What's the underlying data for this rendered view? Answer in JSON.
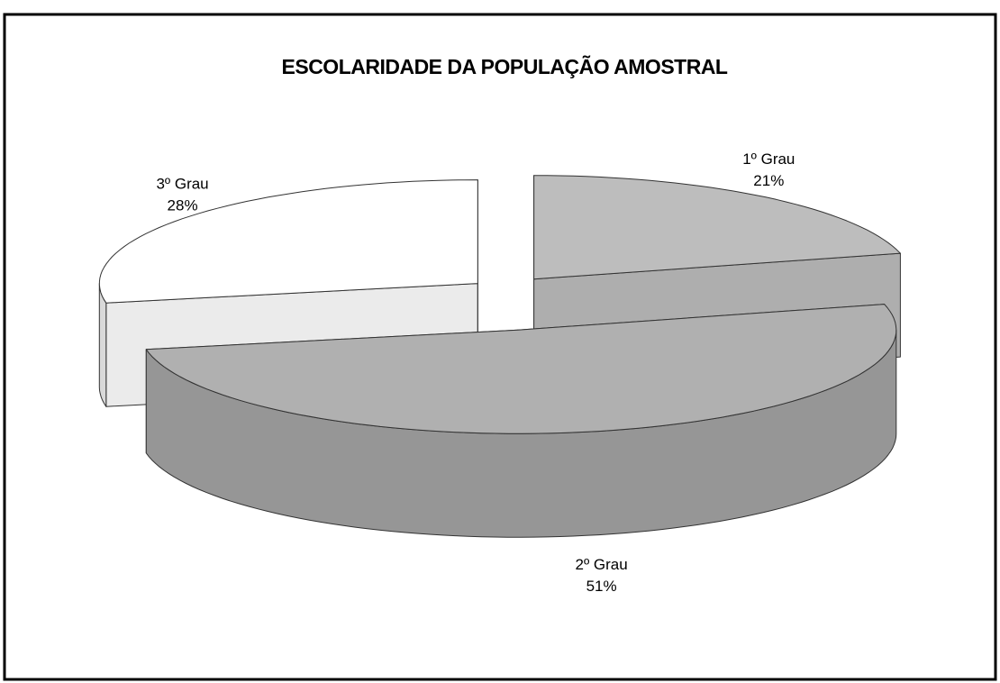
{
  "chart_data": {
    "type": "pie",
    "title": "ESCOLARIDADE DA POPULAÇÃO AMOSTRAL",
    "categories": [
      "1º Grau",
      "2º Grau",
      "3º Grau"
    ],
    "values": [
      21,
      51,
      28
    ],
    "value_labels": [
      "21%",
      "51%",
      "28%"
    ],
    "colors": [
      "#bdbdbd",
      "#b0b0b0",
      "#ffffff"
    ]
  }
}
